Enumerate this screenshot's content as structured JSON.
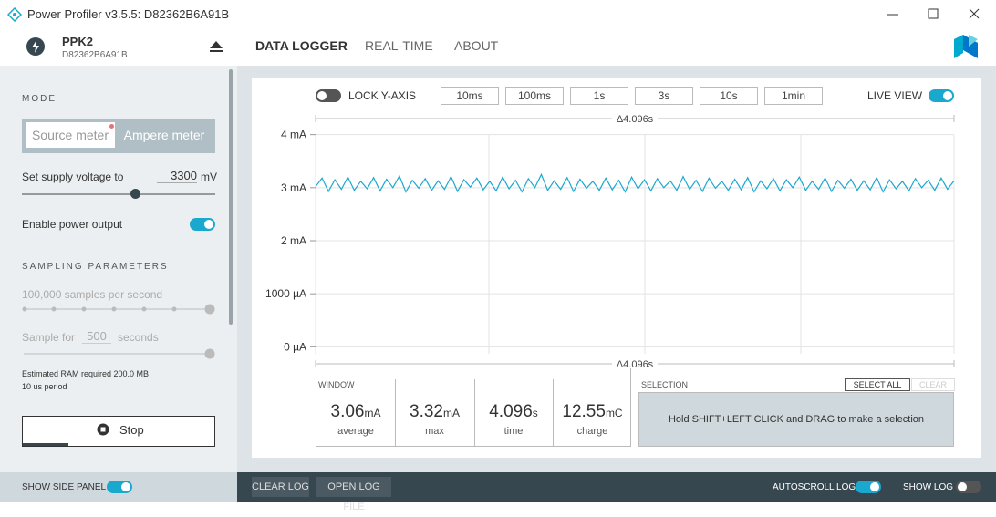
{
  "title_bar": {
    "title": "Power Profiler v3.5.5: D82362B6A91B"
  },
  "device": {
    "name": "PPK2",
    "serial": "D82362B6A91B"
  },
  "nav": {
    "tabs": [
      "DATA LOGGER",
      "REAL-TIME",
      "ABOUT"
    ],
    "active": 0
  },
  "side_panel": {
    "mode_heading": "MODE",
    "modes": [
      "Source meter",
      "Ampere meter"
    ],
    "active_mode": 1,
    "supply_label": "Set supply voltage to",
    "supply_value": 3300,
    "supply_unit": "mV",
    "power_output_label": "Enable power output",
    "power_output": true,
    "sampling_heading": "SAMPLING PARAMETERS",
    "rate_label": "100,000 samples per second",
    "sample_for_label": "Sample for",
    "sample_for_value": 500,
    "sample_for_unit": "seconds",
    "ram_note": "Estimated RAM required 200.0 MB",
    "period_note": "10 us period",
    "stop_button": "Stop"
  },
  "toolbar": {
    "lock_y_axis": {
      "label": "LOCK Y-AXIS",
      "on": false
    },
    "windows": [
      "10ms",
      "100ms",
      "1s",
      "3s",
      "10s",
      "1min"
    ],
    "live_view": {
      "label": "LIVE VIEW",
      "on": true
    }
  },
  "chart_data": {
    "type": "line",
    "top_label": "Δ4.096s",
    "bottom_label": "Δ4.096s",
    "color": "#1ba8cf",
    "grid": true,
    "ylim": [
      -0.2,
      4.2
    ],
    "yticks": [
      {
        "value": 4,
        "label": "4 mA"
      },
      {
        "value": 3,
        "label": "3 mA"
      },
      {
        "value": 2,
        "label": "2 mA"
      },
      {
        "value": 1,
        "label": "1000 µA"
      },
      {
        "value": 0,
        "label": "0 µA"
      }
    ],
    "values": [
      3.02,
      3.18,
      2.93,
      3.15,
      2.97,
      3.2,
      2.95,
      3.12,
      2.98,
      3.19,
      2.94,
      3.16,
      3.0,
      3.22,
      2.92,
      3.14,
      2.99,
      3.17,
      2.95,
      3.13,
      2.97,
      3.21,
      2.93,
      3.15,
      3.01,
      3.18,
      2.96,
      3.12,
      2.94,
      3.2,
      2.98,
      3.14,
      2.92,
      3.17,
      3.0,
      3.25,
      2.95,
      3.13,
      2.97,
      3.19,
      2.93,
      3.16,
      2.99,
      3.12,
      2.95,
      3.18,
      2.96,
      3.14,
      2.92,
      3.2,
      2.98,
      3.15,
      2.94,
      3.17,
      3.0,
      3.13,
      2.95,
      3.21,
      2.97,
      3.14,
      2.93,
      3.18,
      2.99,
      3.12,
      2.95,
      3.16,
      2.96,
      3.19,
      2.92,
      3.13,
      2.98,
      3.17,
      2.94,
      3.15,
      3.0,
      3.2,
      2.95,
      3.12,
      2.97,
      3.18,
      2.93,
      3.14,
      2.99,
      3.16,
      2.95,
      3.13,
      2.96,
      3.19,
      2.92,
      3.15,
      2.98,
      3.12,
      2.94,
      3.17,
      3.0,
      3.14,
      2.95,
      3.18,
      2.97,
      3.13
    ]
  },
  "window_stats": {
    "heading": "WINDOW",
    "items": [
      {
        "value": 3.06,
        "unit": "mA",
        "label": "average"
      },
      {
        "value": 3.32,
        "unit": "mA",
        "label": "max"
      },
      {
        "value": 4.096,
        "unit": "s",
        "label": "time"
      },
      {
        "value": 12.55,
        "unit": "mC",
        "label": "charge"
      }
    ]
  },
  "selection": {
    "heading": "SELECTION",
    "select_all": "SELECT ALL",
    "clear": "CLEAR",
    "hint": "Hold SHIFT+LEFT CLICK and DRAG to make a selection"
  },
  "bottom_bar": {
    "show_side_panel": {
      "label": "SHOW SIDE PANEL",
      "on": true
    },
    "clear_log": "CLEAR LOG",
    "open_log_file": "OPEN LOG FILE",
    "autoscroll_log": {
      "label": "AUTOSCROLL LOG",
      "on": true
    },
    "show_log": {
      "label": "SHOW LOG",
      "on": false
    }
  }
}
